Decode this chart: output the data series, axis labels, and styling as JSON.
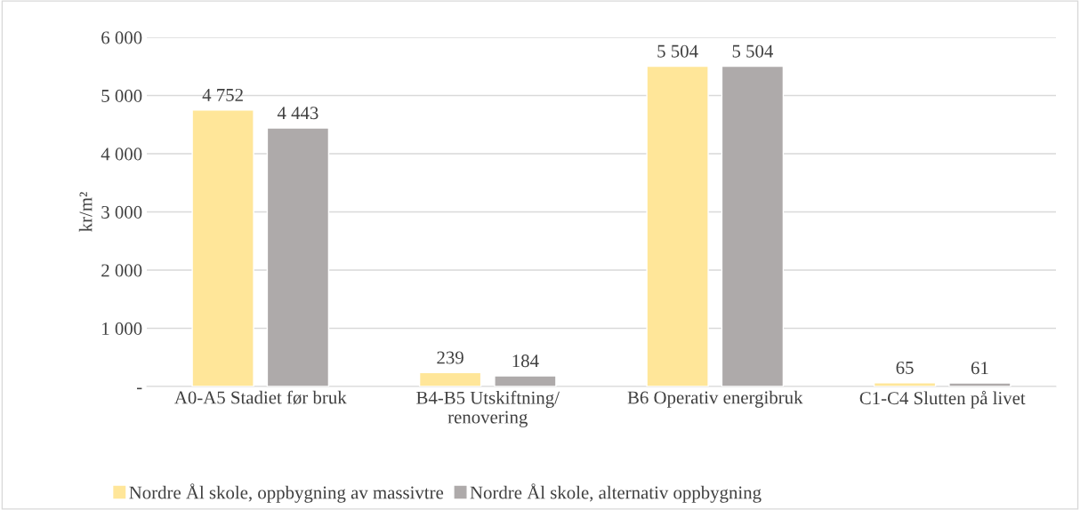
{
  "chart_data": {
    "type": "bar",
    "ylabel": "kr/m²",
    "categories": [
      "A0-A5 Stadiet før bruk",
      "B4-B5 Utskiftning/\nrenovering",
      "B6 Operativ energibruk",
      "C1-C4 Slutten på livet"
    ],
    "series": [
      {
        "name": "Nordre Ål skole, oppbygning av massivtre",
        "color": "#ffe699",
        "values": [
          4752,
          239,
          5504,
          65
        ],
        "value_labels": [
          "4 752",
          "239",
          "5 504",
          "65"
        ]
      },
      {
        "name": "Nordre Ål skole, alternativ oppbygning",
        "color": "#aeaaaa",
        "values": [
          4443,
          184,
          5504,
          61
        ],
        "value_labels": [
          "4 443",
          "184",
          "5 504",
          "61"
        ]
      }
    ],
    "ylim": [
      0,
      6000
    ],
    "yticks": [
      {
        "value": 0,
        "label": "-"
      },
      {
        "value": 1000,
        "label": "1 000"
      },
      {
        "value": 2000,
        "label": "2 000"
      },
      {
        "value": 3000,
        "label": "3 000"
      },
      {
        "value": 4000,
        "label": "4 000"
      },
      {
        "value": 5000,
        "label": "5 000"
      },
      {
        "value": 6000,
        "label": "6 000"
      }
    ],
    "grid": "y",
    "legend": "bottom"
  }
}
